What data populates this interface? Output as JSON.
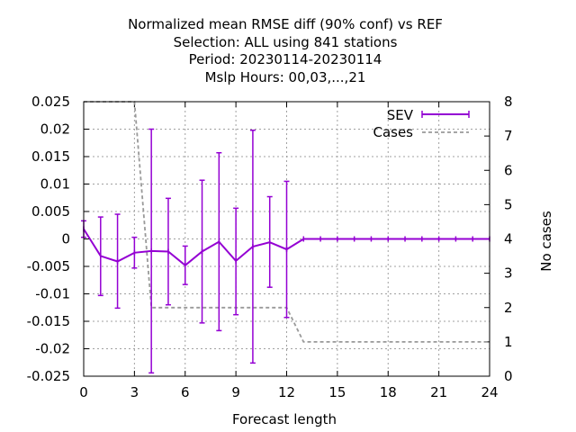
{
  "chart_data": {
    "type": "line",
    "title_lines": [
      "Normalized mean RMSE diff (90% conf) vs REF",
      "Selection: ALL using   841 stations",
      "Period: 20230114-20230114",
      "Mslp   Hours:  00,03,...,21"
    ],
    "xlabel": "Forecast length",
    "ylabel": "",
    "y2label": "No cases",
    "xlim": [
      0,
      24
    ],
    "ylim": [
      -0.025,
      0.025
    ],
    "y2lim": [
      0,
      8
    ],
    "x_ticks": [
      "0",
      "3",
      "6",
      "9",
      "12",
      "15",
      "18",
      "21",
      "24"
    ],
    "y_ticks": [
      "0.025",
      "0.02",
      "0.015",
      "0.01",
      "0.005",
      "0",
      "-0.005",
      "-0.01",
      "-0.015",
      "-0.02",
      "-0.025"
    ],
    "y2_ticks": [
      "0",
      "1",
      "2",
      "3",
      "4",
      "5",
      "6",
      "7",
      "8"
    ],
    "grid": true,
    "legend_position": "top-right",
    "series": [
      {
        "name": "SEV",
        "color": "#9400d3",
        "axis": "left",
        "x": [
          0,
          1,
          2,
          3,
          4,
          5,
          6,
          7,
          8,
          9,
          10,
          11,
          12,
          13,
          14,
          15,
          16,
          17,
          18,
          19,
          20,
          21,
          22,
          23,
          24
        ],
        "y": [
          0.0018,
          -0.0031,
          -0.0041,
          -0.0025,
          -0.0022,
          -0.0023,
          -0.0048,
          -0.0023,
          -0.0005,
          -0.004,
          -0.0014,
          -0.0006,
          -0.0019,
          0,
          0,
          0,
          0,
          0,
          0,
          0,
          0,
          0,
          0,
          0,
          0
        ],
        "ylow": [
          0.0003,
          -0.0103,
          -0.0126,
          -0.0053,
          -0.0244,
          -0.012,
          -0.0083,
          -0.0153,
          -0.0167,
          -0.0138,
          -0.0226,
          -0.0088,
          -0.0143,
          0,
          0,
          0,
          0,
          0,
          0,
          0,
          0,
          0,
          0,
          0,
          0
        ],
        "yhigh": [
          0.0033,
          0.004,
          0.0045,
          0.0003,
          0.02,
          0.0074,
          -0.0013,
          0.0107,
          0.0157,
          0.0056,
          0.0198,
          0.0077,
          0.0105,
          0,
          0,
          0,
          0,
          0,
          0,
          0,
          0,
          0,
          0,
          0,
          0
        ]
      },
      {
        "name": "Cases",
        "color": "#999999",
        "axis": "right",
        "x": [
          0,
          1,
          2,
          3,
          4,
          5,
          6,
          7,
          8,
          9,
          10,
          11,
          12,
          13,
          14,
          15,
          16,
          17,
          18,
          19,
          20,
          21,
          22,
          23,
          24
        ],
        "y": [
          8,
          8,
          8,
          8,
          2,
          2,
          2,
          2,
          2,
          2,
          2,
          2,
          2,
          1,
          1,
          1,
          1,
          1,
          1,
          1,
          1,
          1,
          1,
          1,
          1
        ]
      }
    ]
  }
}
